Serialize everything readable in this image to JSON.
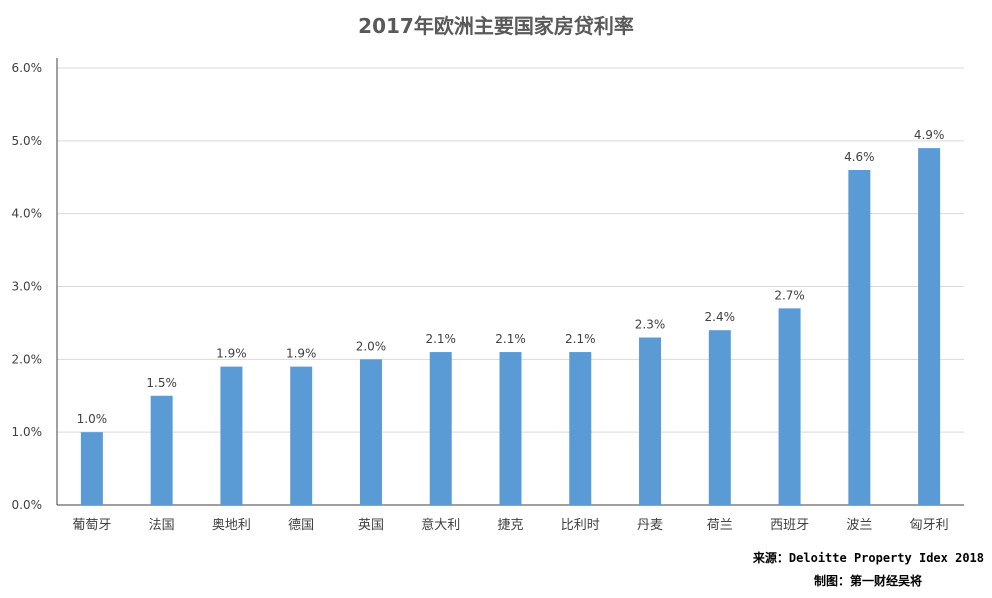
{
  "chart_data": {
    "type": "bar",
    "title": "2017年欧洲主要国家房贷利率",
    "categories": [
      "葡萄牙",
      "法国",
      "奥地利",
      "德国",
      "英国",
      "意大利",
      "捷克",
      "比利时",
      "丹麦",
      "荷兰",
      "西班牙",
      "波兰",
      "匈牙利"
    ],
    "values": [
      1.0,
      1.5,
      1.9,
      1.9,
      2.0,
      2.1,
      2.1,
      2.1,
      2.3,
      2.4,
      2.7,
      4.6,
      4.9
    ],
    "value_labels": [
      "1.0%",
      "1.5%",
      "1.9%",
      "1.9%",
      "2.0%",
      "2.1%",
      "2.1%",
      "2.1%",
      "2.3%",
      "2.4%",
      "2.7%",
      "4.6%",
      "4.9%"
    ],
    "y_ticks": [
      "0.0%",
      "1.0%",
      "2.0%",
      "3.0%",
      "4.0%",
      "5.0%",
      "6.0%"
    ],
    "ylim": [
      0,
      6
    ],
    "grid": true,
    "bar_color": "#5b9bd5",
    "xlabel": "",
    "ylabel": ""
  },
  "footer": {
    "source": "来源：Deloitte Property Idex 2018",
    "credit": "制图：第一财经吴将"
  }
}
